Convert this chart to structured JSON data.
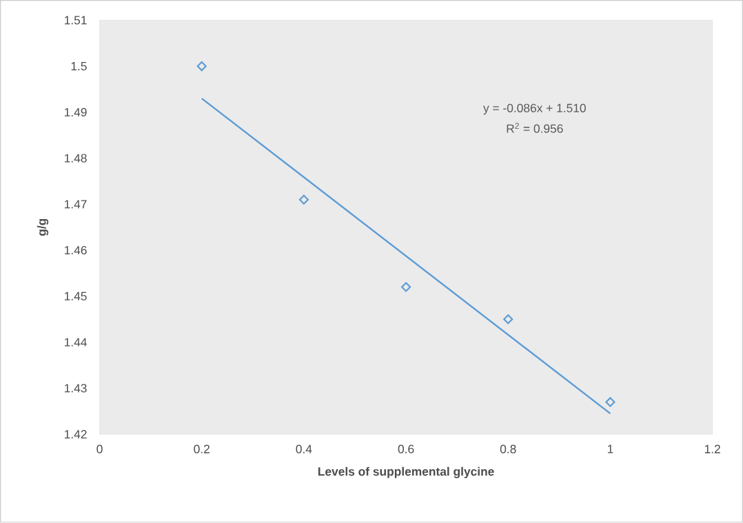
{
  "chart_data": {
    "type": "scatter",
    "xlabel": "Levels of supplemental glycine",
    "ylabel": "g/g",
    "annotations": [
      "y = -0.086x + 1.510",
      "R$^{2}$ = 0.956"
    ],
    "x": [
      0.2,
      0.4,
      0.6,
      0.8,
      1.0
    ],
    "series": [
      {
        "type": "scatter",
        "color": "#5b9bd5",
        "marker": "diamond",
        "values": [
          1.5,
          1.471,
          1.452,
          1.445,
          1.427
        ]
      },
      {
        "type": "line",
        "color": "#5b9bd5",
        "x": [
          0.2,
          1.0
        ],
        "values": [
          1.493,
          1.4245
        ]
      }
    ],
    "xlim": [
      0,
      1.2
    ],
    "ylim": [
      1.42,
      1.51
    ],
    "xticks": [
      0,
      0.2,
      0.4,
      0.6,
      0.8,
      1,
      1.2
    ],
    "yticks": [
      1.42,
      1.43,
      1.44,
      1.45,
      1.46,
      1.47,
      1.48,
      1.49,
      1.5,
      1.51
    ],
    "grid": false
  }
}
